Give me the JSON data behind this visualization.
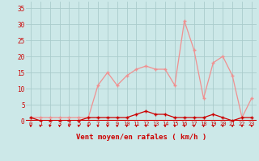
{
  "x": [
    0,
    1,
    2,
    3,
    4,
    5,
    6,
    7,
    8,
    9,
    10,
    11,
    12,
    13,
    14,
    15,
    16,
    17,
    18,
    19,
    20,
    21,
    22,
    23
  ],
  "avg_wind": [
    1,
    0,
    0,
    0,
    0,
    0,
    1,
    1,
    1,
    1,
    1,
    2,
    3,
    2,
    2,
    1,
    1,
    1,
    1,
    2,
    1,
    0,
    1,
    1
  ],
  "gust_wind": [
    1,
    1,
    1,
    1,
    1,
    1,
    1,
    11,
    15,
    11,
    14,
    16,
    17,
    16,
    16,
    11,
    31,
    22,
    7,
    18,
    20,
    14,
    1,
    7
  ],
  "bg_color": "#cce8e8",
  "grid_color": "#aacccc",
  "avg_color": "#cc0000",
  "gust_color": "#f09090",
  "xlabel": "Vent moyen/en rafales ( km/h )",
  "xlabel_color": "#cc0000",
  "tick_color": "#cc0000",
  "ylim": [
    0,
    37
  ],
  "yticks": [
    0,
    5,
    10,
    15,
    20,
    25,
    30,
    35
  ],
  "xlim": [
    -0.5,
    23.5
  ]
}
